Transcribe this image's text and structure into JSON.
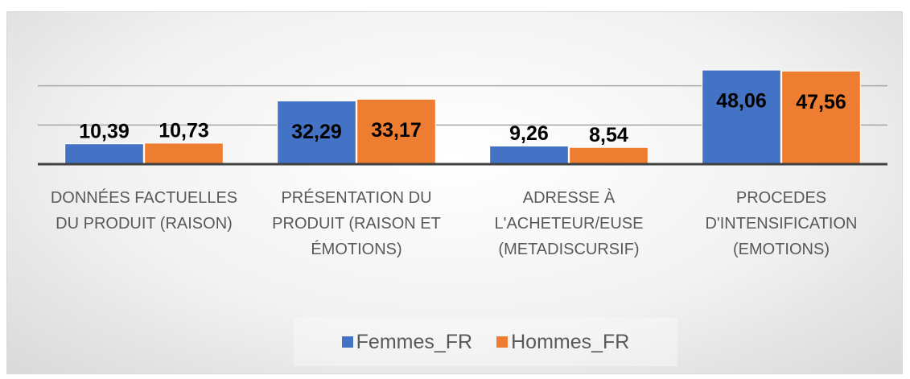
{
  "chart_data": {
    "type": "bar",
    "categories": [
      "DONNÉES FACTUELLES DU PRODUIT (RAISON)",
      "PRÉSENTATION DU PRODUIT (RAISON ET ÉMOTIONS)",
      "ADRESSE À L'ACHETEUR/EUSE (METADISCURSIF)",
      "PROCEDES D'INTENSIFICATION (EMOTIONS)"
    ],
    "series": [
      {
        "name": "Femmes_FR",
        "color": "#4472c4",
        "values": [
          10.39,
          32.29,
          9.26,
          48.06
        ],
        "value_labels": [
          "10,39",
          "32,29",
          "9,26",
          "48,06"
        ]
      },
      {
        "name": "Hommes_FR",
        "color": "#ed7d31",
        "values": [
          10.73,
          33.17,
          8.54,
          47.56
        ],
        "value_labels": [
          "10,73",
          "33,17",
          "8,54",
          "47,56"
        ]
      }
    ],
    "ylim": [
      0,
      60
    ],
    "yticks": [
      0,
      20,
      40
    ],
    "grid": true,
    "legend": "bottom"
  }
}
